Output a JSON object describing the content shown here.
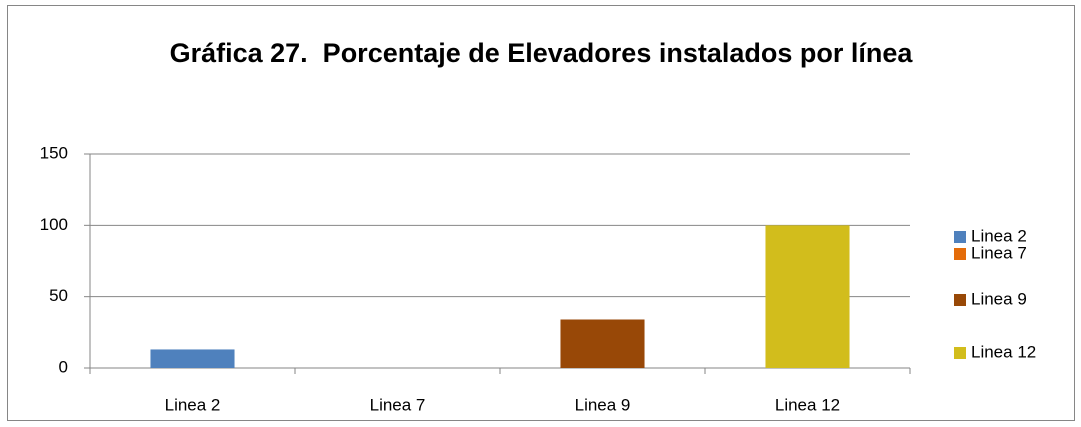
{
  "chart_data": {
    "type": "bar",
    "title": "Gráfica 27.  Porcentaje de Elevadores instalados por línea",
    "categories": [
      "Linea 2",
      "Linea 7",
      "Linea 9",
      "Linea 12"
    ],
    "values": [
      13,
      0,
      34,
      100
    ],
    "colors": [
      "#4f81bd",
      "#e46c0a",
      "#984807",
      "#d2bd1c"
    ],
    "ylim": [
      0,
      150
    ],
    "yticks": [
      0,
      50,
      100,
      150
    ],
    "grid": true,
    "legend": "right"
  }
}
